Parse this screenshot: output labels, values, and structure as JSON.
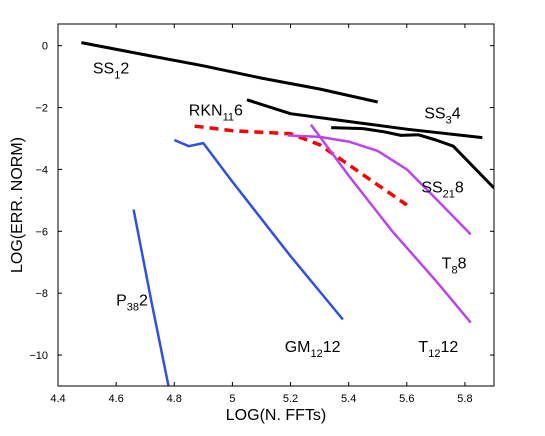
{
  "chart_data": {
    "type": "line",
    "title": "",
    "xlabel": "LOG(N. FFTs)",
    "ylabel": "LOG(ERR. NORM)",
    "xlim": [
      4.4,
      5.9
    ],
    "ylim": [
      -11,
      0.7
    ],
    "xticks": [
      "4.4",
      "4.6",
      "4.8",
      "5",
      "5.2",
      "5.4",
      "5.6",
      "5.8"
    ],
    "yticks": [
      "0",
      "−2",
      "−4",
      "−6",
      "−8",
      "−10"
    ],
    "grid": false,
    "legend": "none",
    "series": [
      {
        "name": "SS12",
        "label": {
          "main": "SS",
          "sub": "1",
          "tail": "2"
        },
        "label_at": [
          4.52,
          -0.9
        ],
        "color": "#000000",
        "width": 3,
        "dash": "",
        "x": [
          4.48,
          4.7,
          4.9,
          5.1,
          5.3,
          5.5
        ],
        "y": [
          0.1,
          -0.3,
          -0.65,
          -1.05,
          -1.4,
          -1.82
        ]
      },
      {
        "name": "SS34",
        "label": {
          "main": "SS",
          "sub": "3",
          "tail": "4"
        },
        "label_at": [
          5.66,
          -2.35
        ],
        "color": "#000000",
        "width": 3,
        "dash": "",
        "x": [
          5.05,
          5.2,
          5.4,
          5.6,
          5.86
        ],
        "y": [
          -1.75,
          -2.2,
          -2.45,
          -2.7,
          -2.97
        ]
      },
      {
        "name": "SS218",
        "label": {
          "main": "SS",
          "sub": "21",
          "tail": "8"
        },
        "label_at": [
          5.65,
          -4.75
        ],
        "color": "#000000",
        "width": 3,
        "dash": "",
        "x": [
          5.34,
          5.45,
          5.52,
          5.58,
          5.64,
          5.7,
          5.76,
          5.9
        ],
        "y": [
          -2.65,
          -2.68,
          -2.78,
          -2.9,
          -2.88,
          -3.05,
          -3.25,
          -4.6
        ]
      },
      {
        "name": "RKN116",
        "label": {
          "main": "RKN",
          "sub": "11",
          "tail": "6"
        },
        "label_at": [
          4.85,
          -2.25
        ],
        "color": "#ff0000",
        "width": 3.5,
        "dash": "9 6",
        "x": [
          4.87,
          5.0,
          5.2,
          5.3,
          5.4,
          5.5,
          5.6
        ],
        "y": [
          -2.6,
          -2.75,
          -2.85,
          -3.2,
          -3.85,
          -4.5,
          -5.15
        ]
      },
      {
        "name": "T88",
        "label": {
          "main": "T",
          "sub": "8",
          "tail": "8"
        },
        "label_at": [
          5.72,
          -7.2
        ],
        "color": "#bb44ee",
        "width": 2.5,
        "dash": "",
        "x": [
          5.19,
          5.3,
          5.4,
          5.5,
          5.6,
          5.7,
          5.82
        ],
        "y": [
          -2.9,
          -2.95,
          -3.1,
          -3.4,
          -4.0,
          -4.95,
          -6.1
        ]
      },
      {
        "name": "T1212",
        "label": {
          "main": "T",
          "sub": "12",
          "tail": "12"
        },
        "label_at": [
          5.64,
          -9.9
        ],
        "color": "#bb44ee",
        "width": 2.5,
        "dash": "",
        "x": [
          5.27,
          5.4,
          5.55,
          5.7,
          5.82
        ],
        "y": [
          -2.55,
          -4.2,
          -6.0,
          -7.6,
          -8.95
        ]
      },
      {
        "name": "GM1212",
        "label": {
          "main": "GM",
          "sub": "12",
          "tail": "12"
        },
        "label_at": [
          5.18,
          -9.9
        ],
        "color": "#3050e0",
        "width": 2.5,
        "dash": "",
        "x": [
          4.8,
          4.85,
          4.9,
          5.0,
          5.2,
          5.38
        ],
        "y": [
          -3.05,
          -3.25,
          -3.15,
          -4.4,
          -6.8,
          -8.85
        ]
      },
      {
        "name": "P382",
        "label": {
          "main": "P",
          "sub": "38",
          "tail": "2"
        },
        "label_at": [
          4.6,
          -8.4
        ],
        "color": "#3050e0",
        "width": 2.5,
        "dash": "",
        "x": [
          4.66,
          4.72,
          4.78
        ],
        "y": [
          -5.3,
          -8.2,
          -11.0
        ]
      }
    ]
  }
}
